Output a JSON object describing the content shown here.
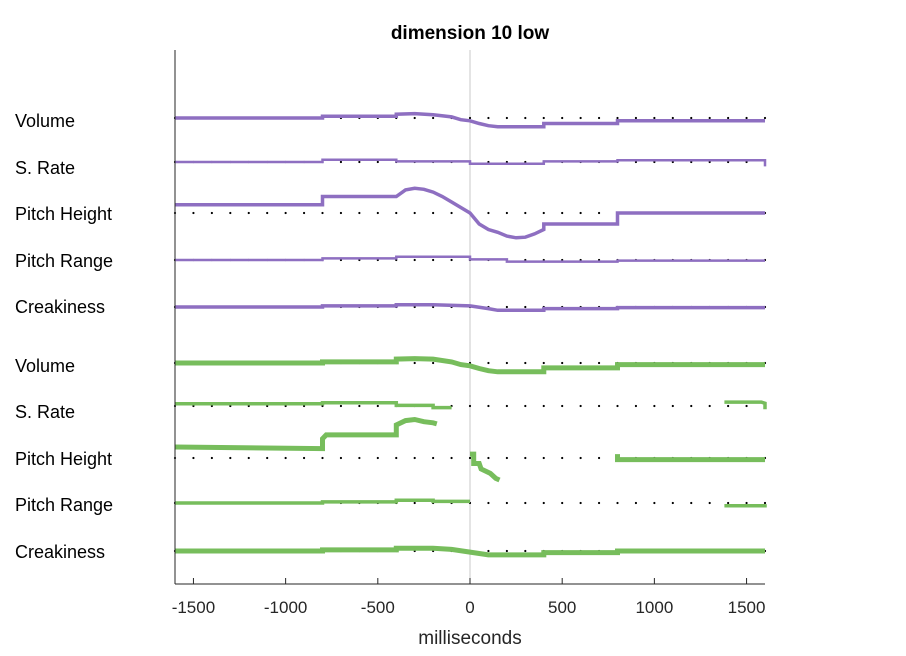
{
  "chart_data": {
    "type": "line",
    "title": "dimension 10 low",
    "xlabel": "milliseconds",
    "xlim": [
      -1600,
      1600
    ],
    "xticks": [
      -1500,
      -1000,
      -500,
      0,
      500,
      1000,
      1500
    ],
    "xtick_labels": [
      "-1500",
      "-1000",
      "-500",
      "0",
      "500",
      "1000",
      "1500"
    ],
    "zero_line": 0,
    "dot_grid_step": 100,
    "colors": {
      "purple": "#8e6fc1",
      "green": "#77bd5c",
      "axis": "#262626",
      "zero_line": "#c8c8c8",
      "dots": "#000000"
    },
    "series": [
      {
        "name": "Volume",
        "color": "purple",
        "width": 3.5,
        "x": [
          -1600,
          -800,
          -800,
          -400,
          -400,
          -300,
          -200,
          -100,
          -50,
          0,
          50,
          100,
          150,
          200,
          400,
          400,
          800,
          800,
          1600
        ],
        "y": [
          0,
          0,
          0.03,
          0.03,
          0.07,
          0.08,
          0.06,
          0.02,
          -0.03,
          -0.05,
          -0.1,
          -0.14,
          -0.16,
          -0.16,
          -0.16,
          -0.1,
          -0.1,
          -0.05,
          -0.05
        ]
      },
      {
        "name": "S. Rate",
        "color": "purple",
        "width": 2.5,
        "x": [
          -1600,
          -800,
          -800,
          -400,
          -400,
          0,
          0,
          400,
          400,
          800,
          800,
          1600,
          1600
        ],
        "y": [
          0,
          0,
          0.04,
          0.04,
          0.01,
          0.01,
          -0.03,
          -0.03,
          0.01,
          0.01,
          0.03,
          0.03,
          -0.08
        ]
      },
      {
        "name": "Pitch Height",
        "color": "purple",
        "width": 3.5,
        "x": [
          -1600,
          -800,
          -800,
          -400,
          -350,
          -300,
          -250,
          -200,
          -150,
          -100,
          -50,
          0,
          50,
          100,
          150,
          200,
          250,
          300,
          350,
          400,
          400,
          800,
          800,
          1600
        ],
        "y": [
          0.15,
          0.15,
          0.3,
          0.3,
          0.42,
          0.45,
          0.43,
          0.38,
          0.3,
          0.2,
          0.1,
          0,
          -0.2,
          -0.3,
          -0.35,
          -0.42,
          -0.45,
          -0.44,
          -0.38,
          -0.3,
          -0.2,
          -0.2,
          0,
          0
        ]
      },
      {
        "name": "Pitch Range",
        "color": "purple",
        "width": 2.5,
        "x": [
          -1600,
          -800,
          -800,
          -400,
          -400,
          0,
          0,
          200,
          200,
          800,
          800,
          1600
        ],
        "y": [
          0,
          0,
          0.03,
          0.03,
          0.06,
          0.06,
          0.01,
          0.01,
          -0.03,
          -0.03,
          -0.01,
          -0.01
        ]
      },
      {
        "name": "Creakiness",
        "color": "purple",
        "width": 3.5,
        "x": [
          -1600,
          -800,
          -800,
          -400,
          -400,
          -200,
          0,
          100,
          150,
          400,
          400,
          800,
          800,
          1600
        ],
        "y": [
          0,
          0,
          0.02,
          0.02,
          0.04,
          0.04,
          0.02,
          -0.03,
          -0.06,
          -0.06,
          -0.03,
          -0.03,
          -0.01,
          -0.01
        ]
      },
      {
        "name": "Volume",
        "color": "green",
        "width": 5,
        "x": [
          -1600,
          -800,
          -800,
          -400,
          -400,
          -300,
          -200,
          -100,
          -50,
          0,
          50,
          100,
          150,
          200,
          400,
          400,
          800,
          800,
          1600
        ],
        "y": [
          0,
          0,
          0.02,
          0.02,
          0.07,
          0.08,
          0.07,
          0.02,
          -0.03,
          -0.05,
          -0.1,
          -0.14,
          -0.16,
          -0.16,
          -0.16,
          -0.09,
          -0.09,
          -0.03,
          -0.03
        ]
      },
      {
        "name": "S. Rate",
        "color": "green",
        "width": 3.5,
        "segments": [
          {
            "x": [
              -1600,
              -800,
              -800,
              -400,
              -400,
              -200,
              -200,
              -100
            ],
            "y": [
              0.04,
              0.04,
              0.06,
              0.06,
              0.01,
              0.01,
              -0.03,
              -0.03
            ]
          },
          {
            "x": [
              1380,
              1580,
              1600,
              1600
            ],
            "y": [
              0.07,
              0.07,
              0.05,
              -0.06
            ]
          }
        ]
      },
      {
        "name": "Pitch Height",
        "color": "green",
        "width": 5,
        "segments": [
          {
            "x": [
              -1600,
              -800,
              -800,
              -780,
              -400,
              -400,
              -350,
              -300,
              -250,
              -200,
              -180
            ],
            "y": [
              0.2,
              0.17,
              0.35,
              0.42,
              0.42,
              0.6,
              0.68,
              0.7,
              0.66,
              0.64,
              0.62
            ]
          },
          {
            "x": [
              0,
              20,
              20,
              50,
              60,
              110,
              140,
              160
            ],
            "y": [
              0.07,
              0.07,
              -0.1,
              -0.1,
              -0.2,
              -0.28,
              -0.37,
              -0.4
            ]
          },
          {
            "x": [
              800,
              800,
              1600
            ],
            "y": [
              0.07,
              -0.03,
              -0.03
            ]
          }
        ]
      },
      {
        "name": "Pitch Range",
        "color": "green",
        "width": 3.5,
        "segments": [
          {
            "x": [
              -1600,
              -800,
              -800,
              -400,
              -400,
              -200,
              -200,
              0
            ],
            "y": [
              0,
              0,
              0.02,
              0.02,
              0.05,
              0.05,
              0.03,
              0.03
            ]
          },
          {
            "x": [
              1380,
              1600,
              1600
            ],
            "y": [
              -0.05,
              -0.05,
              -0.02
            ]
          }
        ]
      },
      {
        "name": "Creakiness",
        "color": "green",
        "width": 5,
        "x": [
          -1600,
          -800,
          -800,
          -400,
          -400,
          -200,
          -100,
          0,
          100,
          150,
          400,
          400,
          800,
          800,
          1600
        ],
        "y": [
          0,
          0,
          0.02,
          0.02,
          0.05,
          0.05,
          0.03,
          -0.02,
          -0.07,
          -0.07,
          -0.07,
          -0.03,
          -0.03,
          0,
          0
        ]
      }
    ]
  }
}
